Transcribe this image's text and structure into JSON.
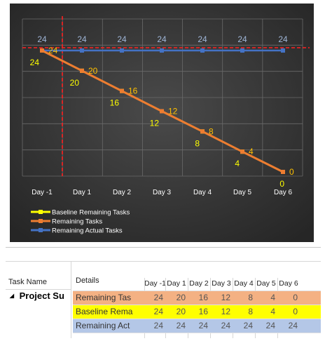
{
  "chart": {
    "background": "#3a3a3a",
    "legend": [
      {
        "label": "Baseline Remaining Tasks",
        "color": "#ffff00"
      },
      {
        "label": "Remaining Tasks",
        "color": "#ed7d31"
      },
      {
        "label": "Remaining Actual Tasks",
        "color": "#4472c4"
      }
    ],
    "status_date_line_color": "#ff2020"
  },
  "chart_data": {
    "type": "line",
    "categories": [
      "Day -1",
      "Day 1",
      "Day 2",
      "Day 3",
      "Day 4",
      "Day 5",
      "Day 6"
    ],
    "series": [
      {
        "name": "Baseline Remaining Tasks",
        "values": [
          24,
          20,
          16,
          12,
          8,
          4,
          0
        ],
        "color": "#ffff00"
      },
      {
        "name": "Remaining Tasks",
        "values": [
          24,
          20,
          16,
          12,
          8,
          4,
          0
        ],
        "color": "#ed7d31"
      },
      {
        "name": "Remaining Actual Tasks",
        "values": [
          24,
          24,
          24,
          24,
          24,
          24,
          24
        ],
        "color": "#4472c4"
      }
    ],
    "ylim": [
      0,
      24
    ],
    "grid": true,
    "legend_position": "bottom-left"
  },
  "grid": {
    "task_name_header": "Task Name",
    "details_header": "Details",
    "task_name": "Project Su",
    "collapse_glyph": "◢",
    "day_headers": [
      "Day -1",
      "Day 1",
      "Day 2",
      "Day 3",
      "Day 4",
      "Day 5",
      "Day 6"
    ],
    "rows": [
      {
        "label": "Remaining Tas",
        "bg": "#f4b183",
        "values": [
          "24",
          "20",
          "16",
          "12",
          "8",
          "4",
          "0"
        ]
      },
      {
        "label": "Baseline Rema",
        "bg": "#ffff00",
        "values": [
          "24",
          "20",
          "16",
          "12",
          "8",
          "4",
          "0"
        ]
      },
      {
        "label": "Remaining Act",
        "bg": "#b4c7e7",
        "values": [
          "24",
          "24",
          "24",
          "24",
          "24",
          "24",
          "24"
        ]
      }
    ]
  }
}
